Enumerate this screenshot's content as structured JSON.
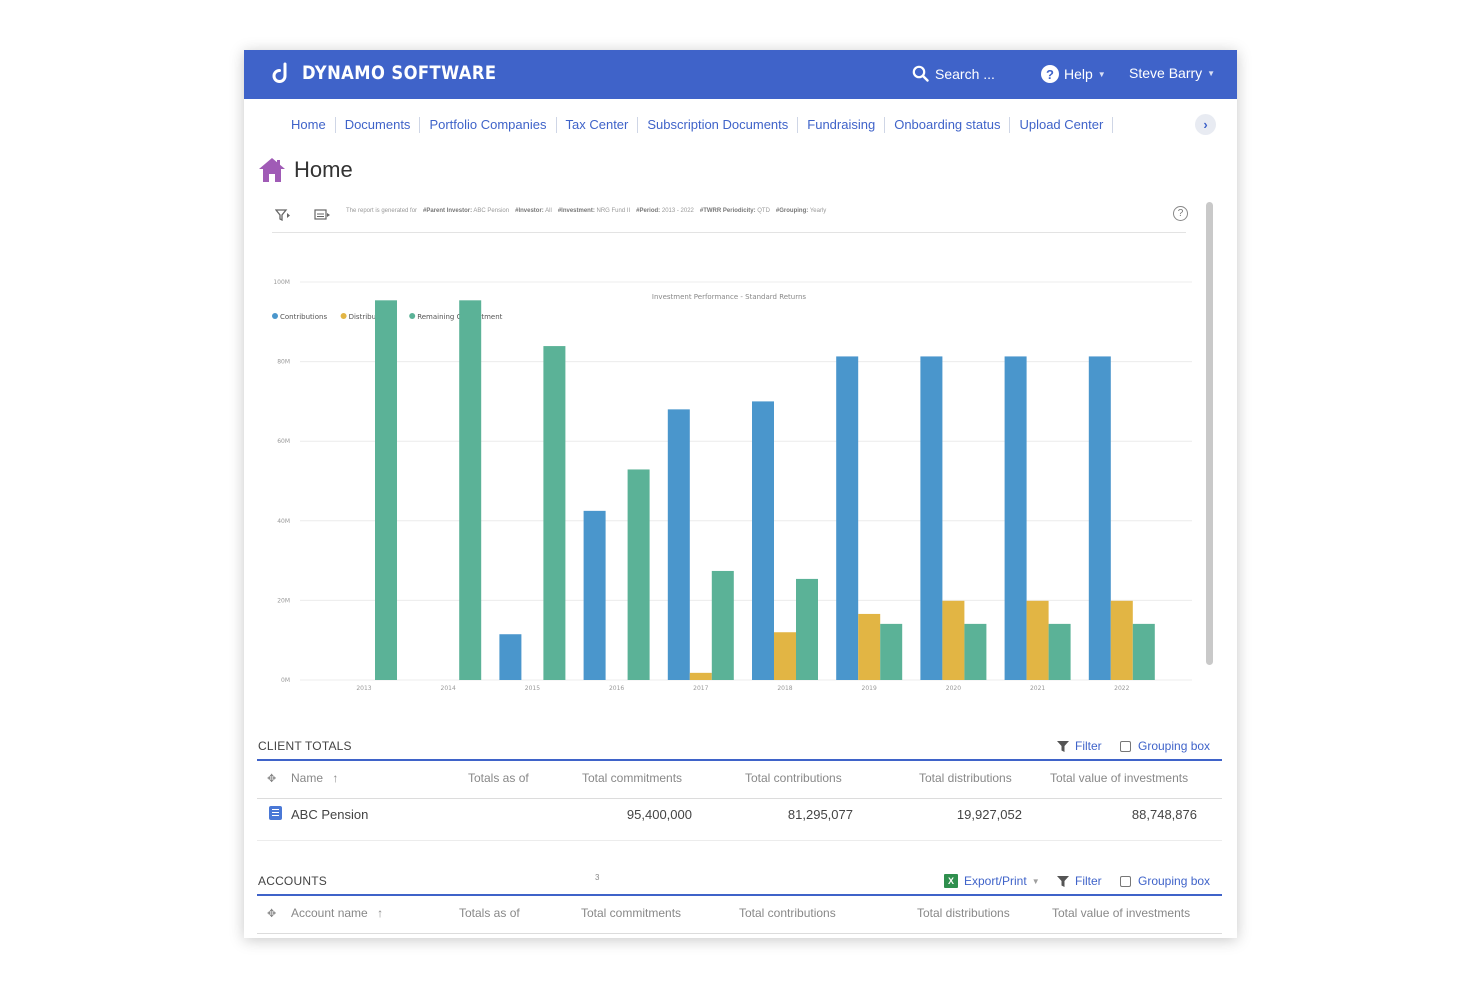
{
  "app": {
    "brand": "DYNAMO SOFTWARE",
    "search_label": "Search ...",
    "help_label": "Help",
    "user_name": "Steve Barry"
  },
  "nav": {
    "items": [
      "Home",
      "Documents",
      "Portfolio Companies",
      "Tax Center",
      "Subscription Documents",
      "Fundraising",
      "Onboarding status",
      "Upload Center"
    ]
  },
  "page": {
    "title": "Home"
  },
  "report": {
    "info": [
      {
        "k": "The report is generated for",
        "v": ""
      },
      {
        "k": "#Parent Investor:",
        "v": "ABC Pension"
      },
      {
        "k": "#Investor:",
        "v": "All"
      },
      {
        "k": "#Investment:",
        "v": "NRG Fund II"
      },
      {
        "k": "#Period:",
        "v": "2013 - 2022"
      },
      {
        "k": "#TWRR Periodicity:",
        "v": "QTD"
      },
      {
        "k": "#Grouping:",
        "v": "Yearly"
      }
    ]
  },
  "chart_data": {
    "type": "bar",
    "title": "Investment Performance - Standard Returns",
    "categories": [
      "2013",
      "2014",
      "2015",
      "2016",
      "2017",
      "2018",
      "2019",
      "2020",
      "2021",
      "2022"
    ],
    "series": [
      {
        "name": "Contributions",
        "color": "#4a96cc",
        "values": [
          0,
          0,
          11.5,
          42.5,
          68,
          70,
          81.3,
          81.3,
          81.3,
          81.3
        ]
      },
      {
        "name": "Distributions",
        "color": "#e2b544",
        "values": [
          0,
          0,
          0,
          0,
          1.8,
          12,
          16.6,
          19.9,
          19.9,
          19.9
        ]
      },
      {
        "name": "Remaining Commitment",
        "color": "#5bb297",
        "values": [
          95.4,
          95.4,
          83.9,
          52.9,
          27.4,
          25.4,
          14.1,
          14.1,
          14.1,
          14.1
        ]
      }
    ],
    "ylim": [
      0,
      100
    ],
    "yticks": [
      0,
      20,
      40,
      60,
      80,
      100
    ],
    "ytick_labels": [
      "0M",
      "20M",
      "40M",
      "60M",
      "80M",
      "100M"
    ],
    "grid": true,
    "legend": "top-left"
  },
  "client_totals": {
    "title": "CLIENT TOTALS",
    "filter_label": "Filter",
    "grouping_label": "Grouping box",
    "columns": [
      "Name",
      "Totals as of",
      "Total commitments",
      "Total contributions",
      "Total distributions",
      "Total value of investments"
    ],
    "sort_arrow": "↑",
    "rows": [
      {
        "name": "ABC Pension",
        "totals_as_of": "",
        "commitments": "95,400,000",
        "contributions": "81,295,077",
        "distributions": "19,927,052",
        "value": "88,748,876"
      }
    ]
  },
  "accounts": {
    "title": "ACCOUNTS",
    "count": "3",
    "export_label": "Export/Print",
    "filter_label": "Filter",
    "grouping_label": "Grouping box",
    "columns": [
      "Account name",
      "Totals as of",
      "Total commitments",
      "Total contributions",
      "Total distributions",
      "Total value of investments"
    ],
    "sort_arrow": "↑"
  }
}
